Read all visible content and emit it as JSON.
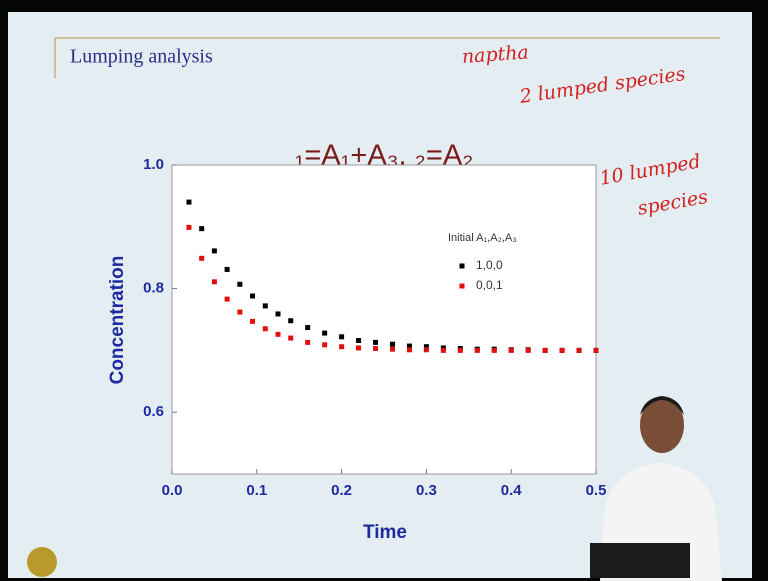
{
  "slide_title": "Lumping analysis",
  "chart_data": {
    "type": "scatter",
    "title": "₁=A₁+A₃, ₂=A₂",
    "annotations": [
      "naptha",
      "2 lumped species",
      "10 lumped",
      "species"
    ],
    "x_label": "Time",
    "y_label": "Concentration",
    "legend_title": "Initial A₁,A₂,A₃",
    "legend": "upper right",
    "xlim": [
      0,
      0.5
    ],
    "ylim": [
      0.5,
      1
    ],
    "xticks": [
      {
        "value": 0,
        "label": "0.0"
      },
      0.1,
      0.2,
      0.3,
      0.4,
      0.5
    ],
    "yticks": [
      0.6,
      0.8,
      {
        "value": 1,
        "label": "1.0"
      }
    ],
    "x": [
      0.02,
      0.035,
      0.05,
      0.065,
      0.08,
      0.095,
      0.11,
      0.125,
      0.14,
      0.16,
      0.18,
      0.2,
      0.22,
      0.24,
      0.26,
      0.28,
      0.3,
      0.32,
      0.34,
      0.36,
      0.38,
      0.4,
      0.42,
      0.44,
      0.46,
      0.48,
      0.5
    ],
    "series": [
      {
        "name": "1,0,0",
        "color": "#000000",
        "values": [
          0.94,
          0.897,
          0.861,
          0.831,
          0.807,
          0.788,
          0.772,
          0.759,
          0.748,
          0.737,
          0.728,
          0.722,
          0.716,
          0.713,
          0.71,
          0.707,
          0.706,
          0.704,
          0.703,
          0.702,
          0.702,
          0.701,
          0.701,
          0.7,
          0.7,
          0.7,
          0.7
        ]
      },
      {
        "name": "0,0,1",
        "color": "#e01010",
        "values": [
          0.899,
          0.849,
          0.811,
          0.783,
          0.762,
          0.747,
          0.735,
          0.726,
          0.72,
          0.713,
          0.709,
          0.706,
          0.704,
          0.703,
          0.702,
          0.701,
          0.701,
          0.7,
          0.7,
          0.7,
          0.7,
          0.7,
          0.7,
          0.7,
          0.7,
          0.7,
          0.7
        ]
      }
    ]
  }
}
